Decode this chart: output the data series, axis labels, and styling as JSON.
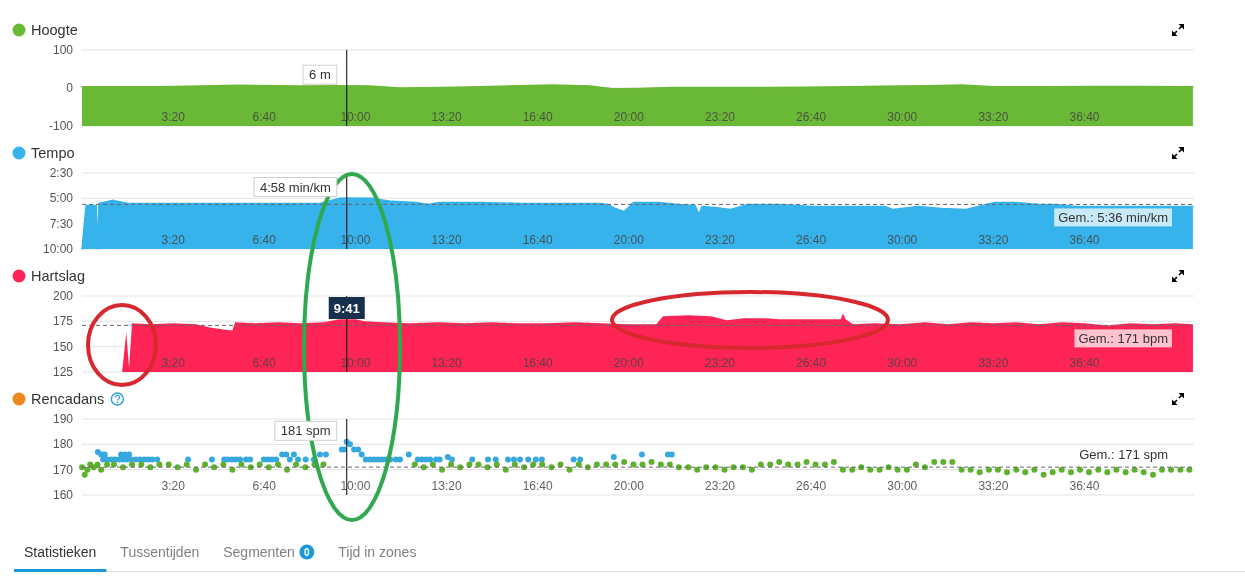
{
  "chart_data": [
    {
      "type": "line",
      "title": "Hoogte",
      "xlim": [
        0,
        40.67
      ],
      "xticks": [
        {
          "value": 3.3333,
          "label": "3:20"
        },
        {
          "value": 6.6667,
          "label": "6:40"
        },
        {
          "value": 10,
          "label": "10:00"
        },
        {
          "value": 13.3333,
          "label": "13:20"
        },
        {
          "value": 16.6667,
          "label": "16:40"
        },
        {
          "value": 20,
          "label": "20:00"
        },
        {
          "value": 23.3333,
          "label": "23:20"
        },
        {
          "value": 26.6667,
          "label": "26:40"
        },
        {
          "value": 30,
          "label": "30:00"
        },
        {
          "value": 33.3333,
          "label": "33:20"
        },
        {
          "value": 36.6667,
          "label": "36:40"
        }
      ],
      "ylim": [
        -100,
        100
      ],
      "yticks": [
        -100,
        0,
        100
      ],
      "grid": "y",
      "x": [
        0,
        0.67,
        2.85,
        4.33,
        5.78,
        7.97,
        9.43,
        10.53,
        11.63,
        13.08,
        14.55,
        16.02,
        17.18,
        18.58,
        19.33,
        19.82,
        20.4,
        21.5,
        23.33,
        26.25,
        28.08,
        29.83,
        31,
        32.18,
        33.35,
        35.4,
        36.87,
        38.68,
        40.63
      ],
      "series": [
        {
          "color": "#6ab936",
          "values": [
            3,
            3,
            3,
            5,
            7,
            5,
            6,
            5,
            0,
            1,
            3,
            6,
            8,
            5,
            -1,
            -2,
            -1,
            1,
            1,
            2,
            3,
            5,
            6,
            8,
            3,
            3,
            4,
            4,
            3
          ],
          "lower": [
            -100,
            -100,
            -100,
            -100,
            -100,
            -100,
            -100,
            -100,
            -100,
            -100,
            -100,
            -100,
            -100,
            -100,
            -100,
            -100,
            -100,
            -100,
            -100,
            -100,
            -100,
            -100,
            -100,
            -100,
            -100,
            -100,
            -100,
            -100,
            -100
          ],
          "upper": [
            3,
            3,
            3,
            5,
            7,
            5,
            6,
            5,
            0,
            1,
            3,
            6,
            8,
            5,
            -1,
            -2,
            -1,
            1,
            1,
            2,
            3,
            5,
            6,
            8,
            3,
            3,
            4,
            4,
            3
          ]
        }
      ],
      "ref_lines": [
        {
          "axis": "x",
          "value": 9.683,
          "color": "#000000"
        }
      ],
      "annotations": [
        {
          "text": "6 m",
          "y": 6
        }
      ]
    },
    {
      "type": "line",
      "title": "Tempo",
      "xlim": [
        0,
        40.67
      ],
      "xticks": [
        {
          "value": 3.3333,
          "label": "3:20"
        },
        {
          "value": 6.6667,
          "label": "6:40"
        },
        {
          "value": 10,
          "label": "10:00"
        },
        {
          "value": 13.3333,
          "label": "13:20"
        },
        {
          "value": 16.6667,
          "label": "16:40"
        },
        {
          "value": 20,
          "label": "20:00"
        },
        {
          "value": 23.3333,
          "label": "23:20"
        },
        {
          "value": 26.6667,
          "label": "26:40"
        },
        {
          "value": 30,
          "label": "30:00"
        },
        {
          "value": 33.3333,
          "label": "33:20"
        },
        {
          "value": 36.6667,
          "label": "36:40"
        }
      ],
      "ylim": [
        10,
        2.5
      ],
      "yticks": [
        {
          "value": 2.5,
          "label": "2:30"
        },
        {
          "value": 5,
          "label": "5:00"
        },
        {
          "value": 7.5,
          "label": "7:30"
        },
        {
          "value": 10,
          "label": "10:00"
        }
      ],
      "grid": "y",
      "x": [
        0,
        0.15,
        0.52,
        0.58,
        0.62,
        1.1,
        1.68,
        2.85,
        4.32,
        5.78,
        7.23,
        8.7,
        9.43,
        9.68,
        10.6,
        11.33,
        12.22,
        12.65,
        13.08,
        14.55,
        16.02,
        17.48,
        18.95,
        19.23,
        19.5,
        19.83,
        20.18,
        21.1,
        21.83,
        22.42,
        22.57,
        22.67,
        23.15,
        23.73,
        24.35,
        25.52,
        26.7,
        28.2,
        29.37,
        29.65,
        30.57,
        31.45,
        32.33,
        33.38,
        34.12,
        35,
        35.58,
        36.35,
        37.82,
        39.32,
        40.63
      ],
      "series": [
        {
          "color": "#37b3ec",
          "values": [
            10,
            5.7,
            5.7,
            10,
            5.5,
            5.2,
            5.5,
            5.5,
            5.5,
            5.5,
            5.5,
            5.5,
            5.0,
            4.97,
            5.0,
            5.3,
            5.4,
            5.6,
            5.4,
            5.4,
            5.5,
            5.5,
            5.5,
            5.6,
            6.0,
            6.3,
            5.4,
            5.4,
            5.6,
            5.7,
            6.6,
            5.8,
            5.9,
            6.1,
            5.6,
            5.6,
            5.8,
            5.8,
            5.8,
            6.1,
            5.8,
            6.0,
            6.1,
            5.4,
            5.4,
            5.6,
            5.6,
            5.8,
            5.8,
            5.8,
            5.8
          ],
          "lower": [
            10,
            5.7,
            5.7,
            10,
            5.5,
            5.2,
            5.5,
            5.5,
            5.5,
            5.5,
            5.5,
            5.5,
            5.0,
            4.97,
            5.0,
            5.3,
            5.4,
            5.6,
            5.4,
            5.4,
            5.5,
            5.5,
            5.5,
            5.6,
            6.0,
            6.3,
            5.4,
            5.4,
            5.6,
            5.7,
            6.6,
            5.8,
            5.9,
            6.1,
            5.6,
            5.6,
            5.8,
            5.8,
            5.8,
            6.1,
            5.8,
            6.0,
            6.1,
            5.4,
            5.4,
            5.6,
            5.6,
            5.8,
            5.8,
            5.8,
            5.8
          ],
          "upper": [
            10,
            10,
            10,
            10,
            10,
            10,
            10,
            10,
            10,
            10,
            10,
            10,
            10,
            10,
            10,
            10,
            10,
            10,
            10,
            10,
            10,
            10,
            10,
            10,
            10,
            10,
            10,
            10,
            10,
            10,
            10,
            10,
            10,
            10,
            10,
            10,
            10,
            10,
            10,
            10,
            10,
            10,
            10,
            10,
            10,
            10,
            10,
            10,
            10,
            10,
            10
          ]
        }
      ],
      "ref_lines": [
        {
          "axis": "x",
          "value": 9.683,
          "color": "#000000"
        },
        {
          "axis": "y",
          "value": 5.6,
          "color": "#666666",
          "line_style": "dashed"
        }
      ],
      "annotations": [
        {
          "text": "4:58 min/km",
          "y": 4.97
        },
        {
          "text": "Gem.: 5:36 min/km",
          "y": 5.6
        }
      ]
    },
    {
      "type": "area",
      "title": "Hartslag",
      "xlim": [
        0,
        40.67
      ],
      "xticks": [
        {
          "value": 3.3333,
          "label": "3:20"
        },
        {
          "value": 6.6667,
          "label": "6:40"
        },
        {
          "value": 10,
          "label": "10:00"
        },
        {
          "value": 13.3333,
          "label": "13:20"
        },
        {
          "value": 16.6667,
          "label": "16:40"
        },
        {
          "value": 20,
          "label": "20:00"
        },
        {
          "value": 23.3333,
          "label": "23:20"
        },
        {
          "value": 26.6667,
          "label": "26:40"
        },
        {
          "value": 30,
          "label": "30:00"
        },
        {
          "value": 33.3333,
          "label": "33:20"
        },
        {
          "value": 36.6667,
          "label": "36:40"
        }
      ],
      "ylim": [
        125,
        200
      ],
      "yticks": [
        125,
        150,
        175,
        200
      ],
      "grid": "y",
      "x": [
        1.47,
        1.62,
        1.72,
        1.83,
        2.5,
        3.33,
        4.17,
        4.68,
        5.17,
        5.5,
        5.6,
        6.33,
        7.17,
        8,
        8.83,
        9.43,
        10,
        10.33,
        11,
        12,
        13,
        14,
        15,
        16,
        17,
        18,
        19,
        20,
        21,
        21.25,
        22.17,
        23,
        23.58,
        24.2,
        25,
        25.52,
        26.67,
        27.75,
        27.83,
        27.93,
        28.2,
        29,
        29.92,
        30.83,
        31.67,
        32.5,
        33.33,
        34.17,
        35,
        35.83,
        36.67,
        37.5,
        38.33,
        39.17,
        40,
        40.63
      ],
      "series": [
        {
          "color": "#fe2455",
          "values": [
            126,
            164,
            129,
            173,
            172,
            173,
            172,
            169,
            167,
            166,
            174,
            173,
            174,
            173,
            174,
            177,
            177,
            175,
            174,
            173,
            174,
            173,
            174,
            173,
            173,
            174,
            173,
            172,
            172,
            180,
            181,
            180,
            176,
            178,
            178,
            177,
            177,
            177,
            183,
            177,
            172,
            173,
            172,
            174,
            172,
            174,
            173,
            174,
            172,
            174,
            173,
            171,
            173,
            172,
            173,
            172
          ]
        }
      ],
      "ref_lines": [
        {
          "axis": "x",
          "value": 9.683,
          "color": "#000000"
        },
        {
          "axis": "y",
          "value": 171,
          "label": "Gem.: 171 bpm",
          "color": "#666666",
          "line_style": "dashed"
        }
      ],
      "annotations": [
        "9:41"
      ]
    },
    {
      "type": "scatter",
      "title": "Rencadans",
      "xlim": [
        0,
        40.67
      ],
      "xticks": [
        {
          "value": 3.3333,
          "label": "3:20"
        },
        {
          "value": 6.6667,
          "label": "6:40"
        },
        {
          "value": 10,
          "label": "10:00"
        },
        {
          "value": 13.3333,
          "label": "13:20"
        },
        {
          "value": 16.6667,
          "label": "16:40"
        },
        {
          "value": 20,
          "label": "20:00"
        },
        {
          "value": 23.3333,
          "label": "23:20"
        },
        {
          "value": 26.6667,
          "label": "26:40"
        },
        {
          "value": 30,
          "label": "30:00"
        },
        {
          "value": 33.3333,
          "label": "33:20"
        },
        {
          "value": 36.6667,
          "label": "36:40"
        }
      ],
      "ylim": [
        160,
        190
      ],
      "yticks": [
        160,
        170,
        180,
        190
      ],
      "grid": "y",
      "marker": "circle",
      "series": [
        {
          "color": "#36a8e0",
          "x": [
            0.58,
            0.7,
            0.77,
            0.83,
            0.92,
            1.07,
            1.2,
            1.35,
            1.43,
            1.5,
            1.57,
            1.65,
            1.72,
            1.8,
            1.97,
            2.12,
            2.27,
            2.42,
            2.57,
            2.75,
            3.88,
            4.75,
            5.2,
            5.33,
            5.48,
            5.63,
            5.78,
            6,
            6.15,
            6.65,
            6.8,
            6.95,
            7.1,
            7.32,
            7.47,
            7.6,
            7.75,
            7.9,
            8.18,
            8.48,
            8.7,
            8.92,
            9.5,
            9.58,
            9.68,
            9.8,
            9.95,
            10.1,
            10.23,
            10.38,
            10.53,
            10.68,
            10.82,
            10.97,
            11.12,
            11.27,
            11.48,
            11.63,
            11.95,
            12.28,
            12.43,
            12.58,
            12.73,
            12.95,
            13.08,
            13.38,
            13.53,
            14.27,
            14.85,
            15.13,
            15.58,
            15.8,
            16.02,
            16.32,
            16.6,
            16.82,
            17.98,
            18.22,
            19.45,
            20.48,
            21.43,
            21.57
          ],
          "values": [
            177,
            176,
            174,
            176,
            174,
            174,
            174,
            174,
            176,
            174,
            176,
            174,
            176,
            174,
            174,
            174,
            174,
            174,
            174,
            174,
            174,
            174,
            174,
            174,
            174,
            174,
            174,
            174,
            174,
            174,
            174,
            174,
            174,
            176,
            176,
            174,
            176,
            174,
            174,
            174,
            176,
            176,
            178,
            178,
            181,
            180,
            178,
            178,
            176,
            174,
            174,
            174,
            174,
            174,
            174,
            174,
            174,
            174,
            176,
            174,
            174,
            174,
            174,
            174,
            174,
            175,
            174,
            174,
            174,
            174,
            174,
            174,
            174,
            174,
            174,
            174,
            174,
            174,
            175,
            176,
            176,
            176
          ]
        },
        {
          "color": "#5db12e",
          "x": [
            0,
            0.1,
            0.2,
            0.3,
            0.43,
            0.57,
            0.7,
            0.92,
            1.17,
            1.5,
            1.83,
            2.17,
            2.5,
            2.83,
            3.17,
            3.5,
            3.83,
            4.17,
            4.5,
            4.83,
            5.17,
            5.5,
            5.83,
            6.17,
            6.5,
            6.83,
            7.17,
            7.5,
            7.83,
            8.17,
            8.5,
            8.83,
            12.17,
            12.5,
            12.83,
            13.17,
            13.5,
            13.83,
            14.17,
            14.5,
            14.83,
            15.17,
            15.5,
            15.83,
            16.17,
            16.5,
            16.83,
            17.17,
            17.5,
            17.83,
            18.17,
            18.5,
            18.83,
            19.17,
            19.5,
            19.83,
            20.17,
            20.5,
            20.83,
            21.17,
            21.5,
            21.83,
            22.17,
            22.5,
            22.83,
            23.17,
            23.5,
            23.83,
            24.17,
            24.5,
            24.83,
            25.17,
            25.5,
            25.83,
            26.17,
            26.5,
            26.83,
            27.17,
            27.5,
            27.83,
            28.17,
            28.5,
            28.83,
            29.17,
            29.5,
            29.83,
            30.17,
            30.5,
            30.83,
            31.17,
            31.5,
            31.83,
            32.17,
            32.5,
            32.83,
            33.17,
            33.5,
            33.83,
            34.17,
            34.5,
            34.83,
            35.17,
            35.5,
            35.83,
            36.17,
            36.5,
            36.83,
            37.17,
            37.5,
            37.83,
            38.17,
            38.5,
            38.83,
            39.17,
            39.5,
            39.83,
            40.17,
            40.5
          ],
          "values": [
            171,
            168,
            170,
            172,
            171,
            172,
            170,
            172,
            172,
            171,
            172,
            172,
            171,
            172,
            172,
            171,
            172,
            170,
            172,
            171,
            172,
            170,
            172,
            171,
            172,
            171,
            172,
            170,
            172,
            171,
            172,
            172,
            172,
            171,
            172,
            170,
            172,
            171,
            172,
            172,
            171,
            172,
            170,
            172,
            171,
            172,
            172,
            171,
            172,
            170,
            172,
            171,
            172,
            172,
            172,
            173,
            172,
            172,
            173,
            172,
            172,
            171,
            171,
            170,
            171,
            171,
            170,
            171,
            171,
            170,
            172,
            172,
            173,
            172,
            172,
            173,
            172,
            172,
            173,
            170,
            170,
            171,
            170,
            170,
            171,
            170,
            170,
            172,
            171,
            173,
            173,
            173,
            170,
            170,
            169,
            170,
            170,
            169,
            170,
            169,
            170,
            168,
            169,
            170,
            169,
            170,
            169,
            170,
            169,
            170,
            169,
            170,
            169,
            168,
            170,
            170,
            170,
            170
          ]
        }
      ],
      "ref_lines": [
        {
          "axis": "x",
          "value": 9.683,
          "color": "#000000"
        },
        {
          "axis": "y",
          "value": 171,
          "label": "Gem.: 171 spm",
          "color": "#666666",
          "line_style": "dashed"
        }
      ],
      "annotations": [
        {
          "text": "181 spm",
          "x": 9.68,
          "y": 181
        }
      ]
    },
    {
      "type": "other",
      "annotations": [
        "Statistieken",
        "Tussentijden",
        "Segmenten",
        "0",
        "Tijd in zones"
      ]
    }
  ]
}
